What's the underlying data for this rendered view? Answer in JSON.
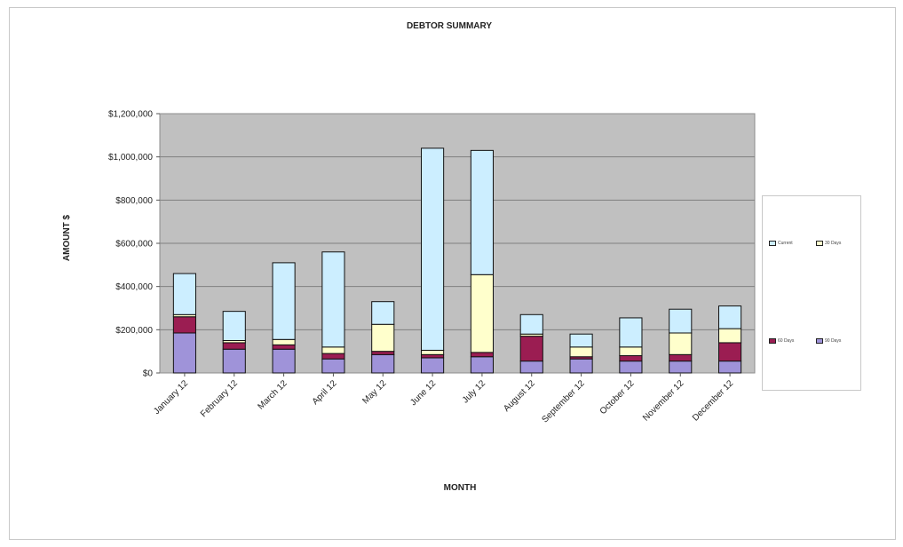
{
  "chart_data": {
    "type": "bar",
    "stacked": true,
    "title": "DEBTOR SUMMARY",
    "xlabel": "MONTH",
    "ylabel": "AMOUNT $",
    "categories": [
      "January 12",
      "February 12",
      "March 12",
      "April 12",
      "May 12",
      "June 12",
      "July 12",
      "August 12",
      "September 12",
      "October 12",
      "November 12",
      "December 12"
    ],
    "yticks": [
      "$0",
      "$200,000",
      "$400,000",
      "$600,000",
      "$800,000",
      "$1,000,000",
      "$1,200,000"
    ],
    "ylim": [
      0,
      1200000
    ],
    "grid": true,
    "legend_position": "right",
    "series": [
      {
        "name": "90 Days",
        "color": "#9f93d9",
        "values": [
          185000,
          110000,
          110000,
          65000,
          85000,
          70000,
          75000,
          55000,
          65000,
          55000,
          55000,
          55000
        ]
      },
      {
        "name": "60 Days",
        "color": "#9b1d52",
        "values": [
          75000,
          30000,
          20000,
          25000,
          15000,
          15000,
          20000,
          115000,
          10000,
          25000,
          30000,
          85000
        ]
      },
      {
        "name": "30 Days",
        "color": "#ffffcc",
        "values": [
          10000,
          10000,
          25000,
          30000,
          125000,
          20000,
          360000,
          10000,
          45000,
          40000,
          100000,
          65000
        ]
      },
      {
        "name": "Current",
        "color": "#cceeff",
        "values": [
          190000,
          135000,
          355000,
          440000,
          105000,
          935000,
          575000,
          90000,
          60000,
          135000,
          110000,
          105000
        ]
      }
    ]
  },
  "legend": {
    "items": [
      {
        "label": "Current",
        "color": "#cceeff"
      },
      {
        "label": "30 Days",
        "color": "#ffffcc"
      },
      {
        "label": "60 Days",
        "color": "#9b1d52"
      },
      {
        "label": "90 Days",
        "color": "#9f93d9"
      }
    ]
  },
  "colors": {
    "plot_background": "#c0c0c0",
    "gridline": "#808080",
    "bar_outline": "#111111"
  }
}
